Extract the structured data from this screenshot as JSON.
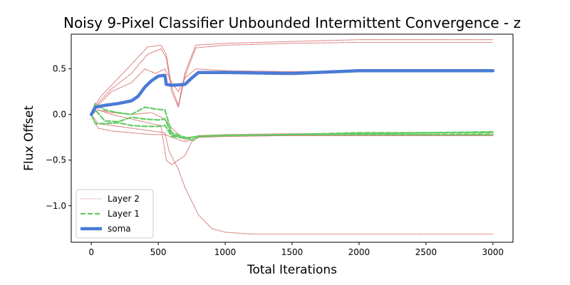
{
  "chart_data": {
    "type": "line",
    "title": "Noisy 9-Pixel Classifier Unbounded Intermittent Convergence - z",
    "xlabel": "Total Iterations",
    "ylabel": "Flux Offset",
    "xlim": [
      -150,
      3150
    ],
    "ylim": [
      -1.4,
      0.88
    ],
    "xticks": [
      0,
      500,
      1000,
      1500,
      2000,
      2500,
      3000
    ],
    "yticks": [
      -1.0,
      -0.5,
      0.0,
      0.5
    ],
    "xtick_labels": [
      "0",
      "500",
      "1000",
      "1500",
      "2000",
      "2500",
      "3000"
    ],
    "ytick_labels": [
      "−1.0",
      "−0.5",
      "0.0",
      "0.5"
    ],
    "grid": false,
    "legend_position": "lower-left",
    "legend": [
      "Layer 2",
      "Layer 1",
      "soma"
    ],
    "colors": {
      "layer2": "#d46363",
      "layer1": "#66cc66",
      "soma": "#4a7bd6"
    },
    "series": [
      {
        "name": "Layer 2",
        "style": "dotted",
        "lines": [
          {
            "x": [
              0,
              60,
              150,
              300,
              420,
              520,
              560,
              600,
              650,
              700,
              780,
              1000,
              1500,
              2000,
              2500,
              3000
            ],
            "y": [
              0.0,
              0.18,
              0.32,
              0.55,
              0.74,
              0.76,
              0.66,
              0.3,
              0.1,
              0.46,
              0.76,
              0.78,
              0.8,
              0.82,
              0.82,
              0.82
            ]
          },
          {
            "x": [
              0,
              60,
              150,
              300,
              420,
              520,
              560,
              600,
              650,
              700,
              780,
              1000,
              1500,
              2000,
              2500,
              3000
            ],
            "y": [
              0.0,
              0.14,
              0.28,
              0.45,
              0.66,
              0.72,
              0.62,
              0.25,
              0.08,
              0.42,
              0.73,
              0.76,
              0.78,
              0.79,
              0.79,
              0.79
            ]
          },
          {
            "x": [
              0,
              50,
              150,
              300,
              400,
              480,
              550,
              600,
              650,
              700,
              780,
              1000,
              1500,
              2000,
              2500,
              3000
            ],
            "y": [
              0.0,
              0.1,
              0.25,
              0.35,
              0.5,
              0.45,
              0.5,
              0.35,
              0.25,
              0.4,
              0.5,
              0.48,
              0.47,
              0.48,
              0.48,
              0.48
            ]
          },
          {
            "x": [
              0,
              50,
              150,
              300,
              450,
              550,
              600,
              700,
              800,
              1000,
              1500,
              2000,
              2500,
              3000
            ],
            "y": [
              0.0,
              0.05,
              0.02,
              0.0,
              0.02,
              -0.05,
              -0.15,
              -0.28,
              -0.23,
              -0.22,
              -0.21,
              -0.21,
              -0.22,
              -0.22
            ]
          },
          {
            "x": [
              0,
              50,
              150,
              300,
              450,
              550,
              600,
              700,
              800,
              1000,
              1500,
              2000,
              2500,
              3000
            ],
            "y": [
              0.0,
              -0.15,
              -0.18,
              -0.2,
              -0.22,
              -0.22,
              -0.25,
              -0.3,
              -0.25,
              -0.24,
              -0.23,
              -0.23,
              -0.23,
              -0.23
            ]
          },
          {
            "x": [
              0,
              50,
              150,
              300,
              450,
              520,
              560,
              600,
              650,
              700,
              750,
              800,
              1000,
              1500,
              2000,
              2500,
              3000
            ],
            "y": [
              0.0,
              0.05,
              0.0,
              -0.05,
              -0.1,
              -0.12,
              -0.5,
              -0.55,
              -0.5,
              -0.45,
              -0.3,
              -0.25,
              -0.24,
              -0.23,
              -0.23,
              -0.23,
              -0.23
            ]
          },
          {
            "x": [
              0,
              50,
              150,
              300,
              450,
              550,
              580,
              650,
              700,
              800,
              900,
              1000,
              1200,
              1500,
              2000,
              2500,
              3000
            ],
            "y": [
              0.0,
              -0.1,
              -0.12,
              -0.15,
              -0.18,
              -0.2,
              -0.4,
              -0.6,
              -0.8,
              -1.1,
              -1.25,
              -1.29,
              -1.31,
              -1.31,
              -1.31,
              -1.31,
              -1.31
            ]
          }
        ]
      },
      {
        "name": "Layer 1",
        "style": "dashed",
        "lines": [
          {
            "x": [
              0,
              30,
              100,
              200,
              300,
              400,
              480,
              550,
              600,
              700,
              750,
              800,
              1000,
              1500,
              2000,
              2500,
              3000
            ],
            "y": [
              0.0,
              0.12,
              0.05,
              0.02,
              0.0,
              0.08,
              0.06,
              0.05,
              -0.2,
              -0.25,
              -0.28,
              -0.24,
              -0.23,
              -0.22,
              -0.21,
              -0.2,
              -0.19
            ]
          },
          {
            "x": [
              0,
              30,
              100,
              200,
              300,
              400,
              500,
              550,
              600,
              700,
              800,
              1000,
              1500,
              2000,
              2500,
              3000
            ],
            "y": [
              0.0,
              0.05,
              -0.07,
              -0.08,
              -0.03,
              -0.05,
              -0.06,
              -0.05,
              -0.22,
              -0.26,
              -0.24,
              -0.23,
              -0.22,
              -0.2,
              -0.2,
              -0.2
            ]
          },
          {
            "x": [
              0,
              30,
              100,
              200,
              300,
              400,
              500,
              550,
              600,
              700,
              800,
              1000,
              1500,
              2000,
              2500,
              3000
            ],
            "y": [
              0.0,
              -0.1,
              -0.1,
              -0.09,
              -0.12,
              -0.13,
              -0.13,
              -0.12,
              -0.24,
              -0.26,
              -0.24,
              -0.23,
              -0.22,
              -0.22,
              -0.22,
              -0.22
            ]
          }
        ]
      },
      {
        "name": "soma",
        "style": "solid",
        "lines": [
          {
            "x": [
              0,
              30,
              100,
              200,
              300,
              350,
              400,
              450,
              500,
              550,
              560,
              600,
              700,
              750,
              800,
              1000,
              1500,
              2000,
              2500,
              3000
            ],
            "y": [
              0.0,
              0.08,
              0.1,
              0.12,
              0.15,
              0.2,
              0.3,
              0.37,
              0.42,
              0.43,
              0.33,
              0.32,
              0.33,
              0.4,
              0.46,
              0.46,
              0.45,
              0.48,
              0.48,
              0.48
            ]
          }
        ]
      }
    ]
  }
}
